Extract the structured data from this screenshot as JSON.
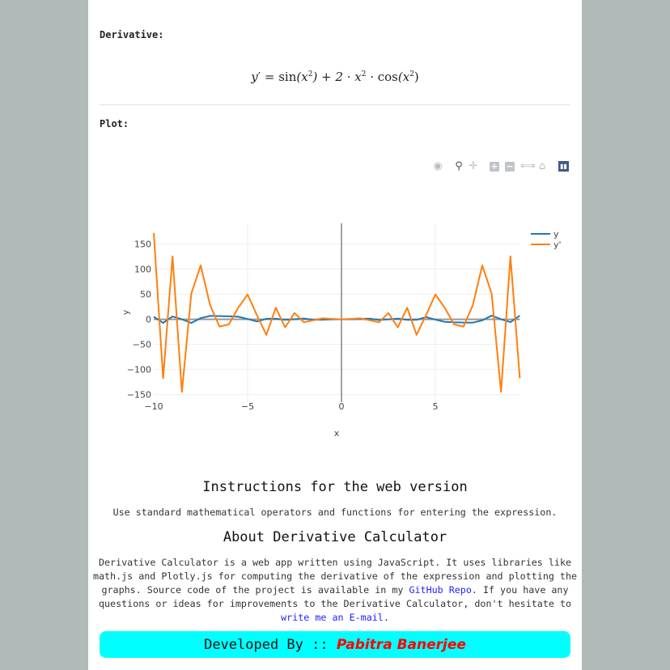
{
  "derivative": {
    "label": "Derivative:",
    "lhs": "y′",
    "eq": "=",
    "rhs_parts": [
      "sin",
      "(x",
      "2",
      ") + 2 · x",
      "2",
      " · cos",
      "(x",
      "2",
      ")"
    ]
  },
  "plot": {
    "label": "Plot:"
  },
  "toolbar": {
    "icons": [
      "camera-icon",
      "zoom-icon",
      "pan-icon",
      "zoom-in-icon",
      "zoom-out-icon",
      "autoscale-icon",
      "home-icon",
      "plotly-logo-icon"
    ]
  },
  "chart_data": {
    "type": "line",
    "xlabel": "x",
    "ylabel": "y",
    "xlim": [
      -10,
      9.5
    ],
    "ylim": [
      -165,
      191
    ],
    "xticks": [
      -10,
      -5,
      0,
      5
    ],
    "xtick_labels": [
      "−10",
      "−5",
      "0",
      "5"
    ],
    "yticks": [
      150,
      100,
      50,
      0,
      -50,
      -100,
      -150
    ],
    "ytick_labels": [
      "150",
      "100",
      "50",
      "0",
      "−50",
      "−100",
      "−150"
    ],
    "grid": true,
    "legend": "top-right",
    "x": [
      -10,
      -9.5,
      -9,
      -8.5,
      -8,
      -7.5,
      -7,
      -6.5,
      -6,
      -5.5,
      -5,
      -4.5,
      -4,
      -3.5,
      -3,
      -2.5,
      -2,
      -1.5,
      -1,
      -0.5,
      0,
      0.5,
      1,
      1.5,
      2,
      2.5,
      3,
      3.5,
      4,
      4.5,
      5,
      5.5,
      6,
      6.5,
      7,
      7.5,
      8,
      8.5,
      9,
      9.5
    ],
    "series": [
      {
        "name": "y",
        "color": "#1f77b4",
        "values": [
          5.06,
          -7.18,
          5.67,
          -0.06,
          -7.36,
          2.21,
          6.68,
          6.42,
          5.95,
          5.06,
          0.66,
          -4.44,
          1.15,
          1.09,
          -1.24,
          0.08,
          1.51,
          -1.17,
          -0.84,
          -0.12,
          0,
          0.12,
          0.84,
          1.17,
          -1.51,
          -0.08,
          1.24,
          -1.09,
          -1.15,
          4.44,
          -0.66,
          -5.06,
          -5.95,
          -6.42,
          -6.68,
          -2.21,
          7.36,
          0.06,
          -5.67,
          7.18
        ]
      },
      {
        "name": "y'",
        "color": "#ff7f0e",
        "values": [
          171.95,
          -117.55,
          125.2,
          -144.49,
          51.08,
          107.22,
          28.5,
          -14.59,
          -10.21,
          22.92,
          49.43,
          7.87,
          -30.93,
          22.97,
          -16.01,
          12.46,
          -5.99,
          -2.05,
          1.92,
          0.73,
          0,
          0.73,
          1.92,
          -2.05,
          -5.99,
          12.46,
          -16.01,
          22.97,
          -30.93,
          7.87,
          49.43,
          22.92,
          -10.21,
          -14.59,
          28.5,
          107.22,
          51.08,
          -144.49,
          125.2,
          -117.55
        ]
      }
    ]
  },
  "instructions": {
    "title": "Instructions for the web version",
    "text": "Use standard mathematical operators and functions for entering the expression."
  },
  "about": {
    "title": "About Derivative Calculator",
    "text1": "Derivative Calculator is a web app written using JavaScript. It uses libraries like math.js and Plotly.js for computing the derivative of the expression and plotting the graphs. Source code of the project is available in my ",
    "link1": "GitHub Repo",
    "text2": ". If you have any questions or ideas for improvements to the Derivative Calculator, don't hesitate to ",
    "link2": "write me an E-mail",
    "text3": "."
  },
  "footer": {
    "prefix": "Developed By :: ",
    "name": "Pabitra Banerjee",
    "bg": "#00ffff",
    "name_color": "#ff0000"
  }
}
